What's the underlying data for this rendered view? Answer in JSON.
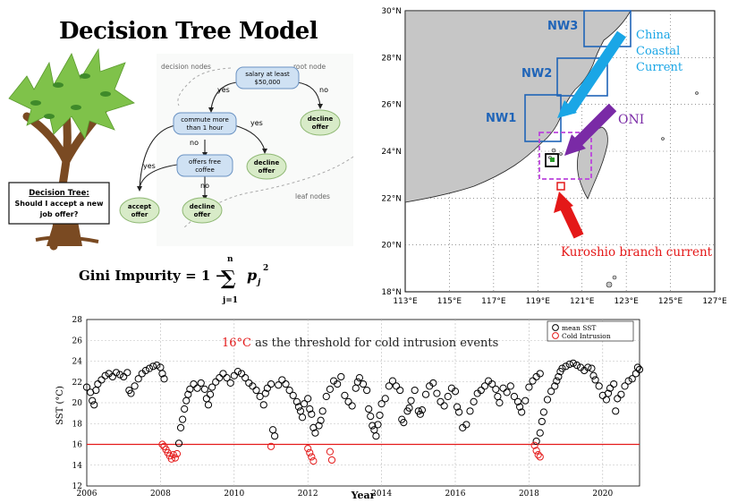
{
  "decision_tree": {
    "title": "Decision Tree Model",
    "legend_decision": "decision nodes",
    "legend_root": "root node",
    "legend_leaf": "leaf nodes",
    "root": "salary at least $50,000",
    "n_commute": "commute more than 1 hour",
    "n_coffee": "offers free coffee",
    "leaf_decline1": "decline offer",
    "leaf_decline2": "decline offer",
    "leaf_decline3": "decline offer",
    "leaf_accept": "accept offer",
    "yes": "yes",
    "no": "no",
    "box_title": "Decision Tree:",
    "box_question": "Should I accept a new job offer?",
    "formula_lhs": "Gini Impurity = 1 −",
    "formula_sum_top": "n",
    "formula_sum_bottom": "j=1",
    "formula_term": "p",
    "formula_sub": "j",
    "formula_exp": "2"
  },
  "map": {
    "lat_labels": [
      "30°N",
      "28°N",
      "26°N",
      "24°N",
      "22°N",
      "20°N",
      "18°N"
    ],
    "lon_labels": [
      "113°E",
      "115°E",
      "117°E",
      "119°E",
      "121°E",
      "123°E",
      "125°E",
      "127°E"
    ],
    "xlim": [
      113,
      127
    ],
    "ylim": [
      18,
      30
    ],
    "boxes": [
      "NW1",
      "NW2",
      "NW3"
    ],
    "china_current": "China Coastal Current",
    "oni": "ONI",
    "kuroshio": "Kuroshio branch current",
    "colors": {
      "land": "#c6c6c6",
      "nw": "#1f64b8",
      "china": "#1aa6e6",
      "oni": "#7a2aa6",
      "kuroshio": "#e41818"
    }
  },
  "chart_data": {
    "type": "scatter",
    "xlabel": "Year",
    "ylabel": "SST (°C)",
    "xlim": [
      2006,
      2021
    ],
    "ylim": [
      12,
      28
    ],
    "xticks": [
      "2006",
      "2008",
      "2010",
      "2012",
      "2014",
      "2016",
      "2018",
      "2020"
    ],
    "yticks": [
      "12",
      "14",
      "16",
      "18",
      "20",
      "22",
      "24",
      "26",
      "28"
    ],
    "annotation_value": "16°C",
    "annotation_text": " as the threshold for cold intrusion events",
    "threshold": 16,
    "legend_placement": "top-right",
    "series": [
      {
        "name": "mean SST",
        "color": "#000000",
        "values": [
          [
            2006.0,
            21.5
          ],
          [
            2006.1,
            21.0
          ],
          [
            2006.15,
            20.2
          ],
          [
            2006.2,
            19.8
          ],
          [
            2006.25,
            21.2
          ],
          [
            2006.3,
            21.8
          ],
          [
            2006.4,
            22.2
          ],
          [
            2006.5,
            22.6
          ],
          [
            2006.6,
            22.8
          ],
          [
            2006.7,
            22.5
          ],
          [
            2006.8,
            22.9
          ],
          [
            2006.9,
            22.7
          ],
          [
            2007.0,
            22.5
          ],
          [
            2007.1,
            22.9
          ],
          [
            2007.15,
            21.2
          ],
          [
            2007.2,
            20.9
          ],
          [
            2007.3,
            21.6
          ],
          [
            2007.4,
            22.3
          ],
          [
            2007.5,
            22.8
          ],
          [
            2007.6,
            23.1
          ],
          [
            2007.7,
            23.3
          ],
          [
            2007.8,
            23.5
          ],
          [
            2007.9,
            23.6
          ],
          [
            2008.0,
            23.4
          ],
          [
            2008.05,
            22.8
          ],
          [
            2008.1,
            22.3
          ],
          [
            2008.5,
            16.1
          ],
          [
            2008.55,
            17.6
          ],
          [
            2008.6,
            18.4
          ],
          [
            2008.65,
            19.4
          ],
          [
            2008.7,
            20.2
          ],
          [
            2008.75,
            20.8
          ],
          [
            2008.8,
            21.3
          ],
          [
            2008.9,
            21.8
          ],
          [
            2009.0,
            21.4
          ],
          [
            2009.1,
            21.9
          ],
          [
            2009.2,
            21.3
          ],
          [
            2009.25,
            20.4
          ],
          [
            2009.3,
            19.8
          ],
          [
            2009.35,
            20.8
          ],
          [
            2009.4,
            21.5
          ],
          [
            2009.5,
            22.0
          ],
          [
            2009.6,
            22.4
          ],
          [
            2009.7,
            22.8
          ],
          [
            2009.8,
            22.4
          ],
          [
            2009.9,
            21.9
          ],
          [
            2010.0,
            22.6
          ],
          [
            2010.1,
            23.0
          ],
          [
            2010.2,
            22.8
          ],
          [
            2010.3,
            22.4
          ],
          [
            2010.4,
            21.9
          ],
          [
            2010.5,
            21.6
          ],
          [
            2010.6,
            21.2
          ],
          [
            2010.7,
            20.6
          ],
          [
            2010.8,
            19.8
          ],
          [
            2010.85,
            20.9
          ],
          [
            2010.9,
            21.4
          ],
          [
            2011.0,
            21.8
          ],
          [
            2011.05,
            17.4
          ],
          [
            2011.1,
            16.8
          ],
          [
            2011.2,
            21.7
          ],
          [
            2011.3,
            22.2
          ],
          [
            2011.4,
            21.8
          ],
          [
            2011.5,
            21.2
          ],
          [
            2011.6,
            20.7
          ],
          [
            2011.7,
            20.1
          ],
          [
            2011.75,
            19.6
          ],
          [
            2011.8,
            19.2
          ],
          [
            2011.85,
            18.6
          ],
          [
            2011.9,
            19.9
          ],
          [
            2012.0,
            20.4
          ],
          [
            2012.05,
            19.4
          ],
          [
            2012.1,
            18.9
          ],
          [
            2012.15,
            17.6
          ],
          [
            2012.2,
            17.1
          ],
          [
            2012.3,
            17.8
          ],
          [
            2012.35,
            18.3
          ],
          [
            2012.4,
            19.2
          ],
          [
            2012.5,
            20.6
          ],
          [
            2012.6,
            21.3
          ],
          [
            2012.7,
            22.1
          ],
          [
            2012.8,
            21.8
          ],
          [
            2012.9,
            22.5
          ],
          [
            2013.0,
            20.7
          ],
          [
            2013.1,
            20.1
          ],
          [
            2013.2,
            19.7
          ],
          [
            2013.3,
            21.4
          ],
          [
            2013.35,
            22.0
          ],
          [
            2013.4,
            22.4
          ],
          [
            2013.5,
            21.8
          ],
          [
            2013.6,
            21.2
          ],
          [
            2013.65,
            19.4
          ],
          [
            2013.7,
            18.7
          ],
          [
            2013.75,
            17.8
          ],
          [
            2013.8,
            17.4
          ],
          [
            2013.85,
            16.8
          ],
          [
            2013.9,
            17.9
          ],
          [
            2013.95,
            18.8
          ],
          [
            2014.0,
            19.9
          ],
          [
            2014.1,
            20.4
          ],
          [
            2014.2,
            21.6
          ],
          [
            2014.3,
            22.1
          ],
          [
            2014.4,
            21.6
          ],
          [
            2014.5,
            21.2
          ],
          [
            2014.55,
            18.4
          ],
          [
            2014.6,
            18.1
          ],
          [
            2014.7,
            19.2
          ],
          [
            2014.75,
            19.5
          ],
          [
            2014.8,
            20.2
          ],
          [
            2014.9,
            21.2
          ],
          [
            2015.0,
            19.2
          ],
          [
            2015.05,
            18.9
          ],
          [
            2015.1,
            19.3
          ],
          [
            2015.2,
            20.8
          ],
          [
            2015.3,
            21.6
          ],
          [
            2015.4,
            21.9
          ],
          [
            2015.5,
            20.9
          ],
          [
            2015.6,
            20.1
          ],
          [
            2015.7,
            19.7
          ],
          [
            2015.8,
            20.6
          ],
          [
            2015.9,
            21.4
          ],
          [
            2016.0,
            21.1
          ],
          [
            2016.05,
            19.6
          ],
          [
            2016.1,
            19.1
          ],
          [
            2016.2,
            17.6
          ],
          [
            2016.3,
            17.9
          ],
          [
            2016.4,
            19.2
          ],
          [
            2016.5,
            20.1
          ],
          [
            2016.6,
            20.9
          ],
          [
            2016.7,
            21.2
          ],
          [
            2016.8,
            21.6
          ],
          [
            2016.9,
            22.1
          ],
          [
            2017.0,
            21.8
          ],
          [
            2017.1,
            21.3
          ],
          [
            2017.15,
            20.6
          ],
          [
            2017.2,
            20.0
          ],
          [
            2017.3,
            21.4
          ],
          [
            2017.4,
            21.0
          ],
          [
            2017.5,
            21.6
          ],
          [
            2017.6,
            20.6
          ],
          [
            2017.7,
            20.1
          ],
          [
            2017.75,
            19.6
          ],
          [
            2017.8,
            19.1
          ],
          [
            2017.9,
            20.2
          ],
          [
            2018.0,
            21.5
          ],
          [
            2018.1,
            22.1
          ],
          [
            2018.2,
            22.5
          ],
          [
            2018.3,
            22.8
          ],
          [
            2018.2,
            16.3
          ],
          [
            2018.3,
            17.1
          ],
          [
            2018.35,
            18.2
          ],
          [
            2018.4,
            19.1
          ],
          [
            2018.5,
            20.3
          ],
          [
            2018.6,
            21.1
          ],
          [
            2018.7,
            21.6
          ],
          [
            2018.75,
            22.1
          ],
          [
            2018.8,
            22.5
          ],
          [
            2018.85,
            23.0
          ],
          [
            2018.9,
            23.3
          ],
          [
            2019.0,
            23.5
          ],
          [
            2019.1,
            23.7
          ],
          [
            2019.2,
            23.8
          ],
          [
            2019.3,
            23.6
          ],
          [
            2019.4,
            23.4
          ],
          [
            2019.5,
            23.1
          ],
          [
            2019.6,
            23.4
          ],
          [
            2019.7,
            23.3
          ],
          [
            2019.75,
            22.6
          ],
          [
            2019.8,
            22.2
          ],
          [
            2019.9,
            21.6
          ],
          [
            2020.0,
            20.7
          ],
          [
            2020.1,
            20.3
          ],
          [
            2020.15,
            20.9
          ],
          [
            2020.2,
            21.4
          ],
          [
            2020.3,
            21.8
          ],
          [
            2020.35,
            19.2
          ],
          [
            2020.4,
            20.4
          ],
          [
            2020.5,
            20.8
          ],
          [
            2020.6,
            21.6
          ],
          [
            2020.7,
            22.1
          ],
          [
            2020.8,
            22.3
          ],
          [
            2020.9,
            22.8
          ],
          [
            2021.0,
            23.2
          ],
          [
            2020.95,
            23.4
          ]
        ]
      },
      {
        "name": "Cold Intrusion",
        "color": "#e41a1a",
        "values": [
          [
            2008.05,
            16.0
          ],
          [
            2008.1,
            15.8
          ],
          [
            2008.15,
            15.5
          ],
          [
            2008.2,
            15.2
          ],
          [
            2008.25,
            14.9
          ],
          [
            2008.3,
            14.6
          ],
          [
            2008.35,
            15.0
          ],
          [
            2008.4,
            14.7
          ],
          [
            2008.45,
            15.1
          ],
          [
            2011.0,
            15.8
          ],
          [
            2012.0,
            15.6
          ],
          [
            2012.05,
            15.2
          ],
          [
            2012.1,
            14.8
          ],
          [
            2012.15,
            14.4
          ],
          [
            2012.6,
            15.3
          ],
          [
            2012.65,
            14.5
          ],
          [
            2018.15,
            15.9
          ],
          [
            2018.2,
            15.4
          ],
          [
            2018.25,
            15.0
          ],
          [
            2018.3,
            14.8
          ]
        ]
      }
    ]
  }
}
